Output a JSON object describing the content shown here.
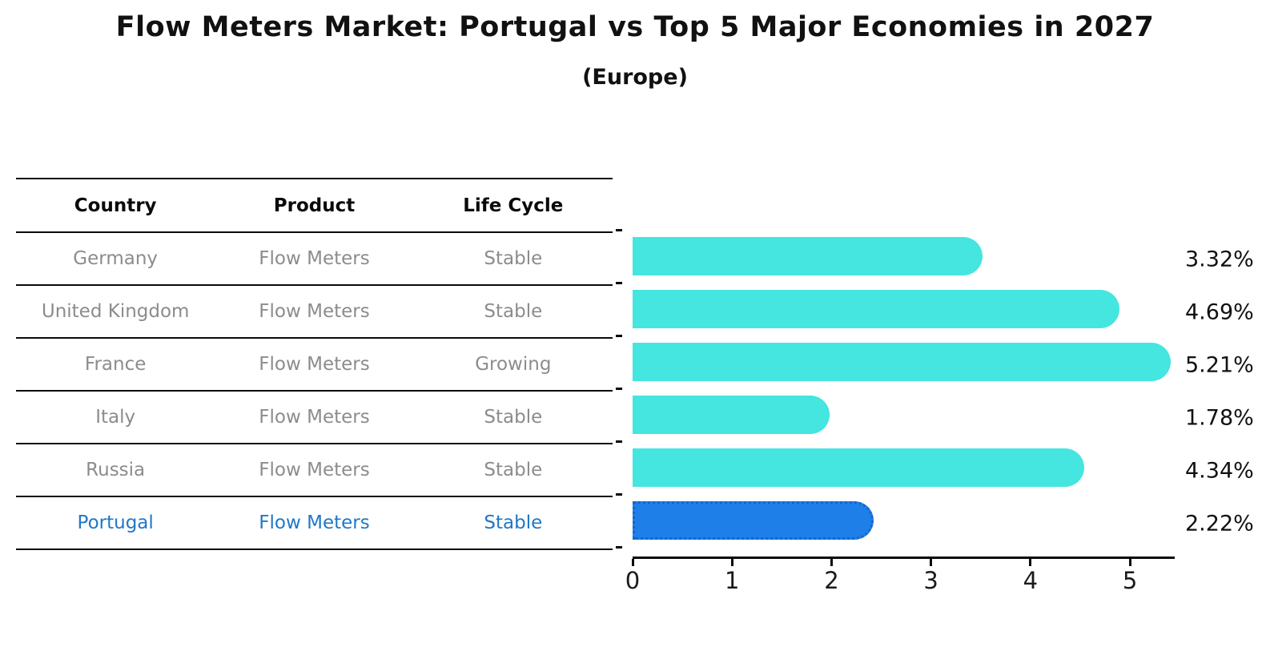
{
  "title": "Flow Meters Market: Portugal vs Top 5 Major Economies in 2027",
  "subtitle": "(Europe)",
  "table": {
    "headers": [
      "Country",
      "Product",
      "Life Cycle"
    ],
    "rows": [
      {
        "country": "Germany",
        "product": "Flow Meters",
        "life_cycle": "Stable",
        "highlight": false
      },
      {
        "country": "United Kingdom",
        "product": "Flow Meters",
        "life_cycle": "Stable",
        "highlight": false
      },
      {
        "country": "France",
        "product": "Flow Meters",
        "life_cycle": "Growing",
        "highlight": false
      },
      {
        "country": "Italy",
        "product": "Flow Meters",
        "life_cycle": "Stable",
        "highlight": false
      },
      {
        "country": "Russia",
        "product": "Flow Meters",
        "life_cycle": "Stable",
        "highlight": false
      },
      {
        "country": "Portugal",
        "product": "Flow Meters",
        "life_cycle": "Stable",
        "highlight": true
      }
    ]
  },
  "chart_data": {
    "type": "bar",
    "orientation": "horizontal",
    "categories": [
      "Germany",
      "United Kingdom",
      "France",
      "Italy",
      "Russia",
      "Portugal"
    ],
    "values": [
      3.32,
      4.69,
      5.21,
      1.78,
      4.34,
      2.22
    ],
    "value_labels": [
      "3.32%",
      "4.69%",
      "5.21%",
      "1.78%",
      "4.34%",
      "2.22%"
    ],
    "highlight_index": 5,
    "xlabel": "",
    "ylabel": "",
    "xlim": [
      0,
      5.45
    ],
    "xticks": [
      "0",
      "1",
      "2",
      "3",
      "4",
      "5"
    ],
    "grid": false,
    "legend": false,
    "bar_color": "#45E5E0",
    "highlight_bar_color": "#1E7FE8",
    "highlight_text_color": "#2177C7"
  }
}
